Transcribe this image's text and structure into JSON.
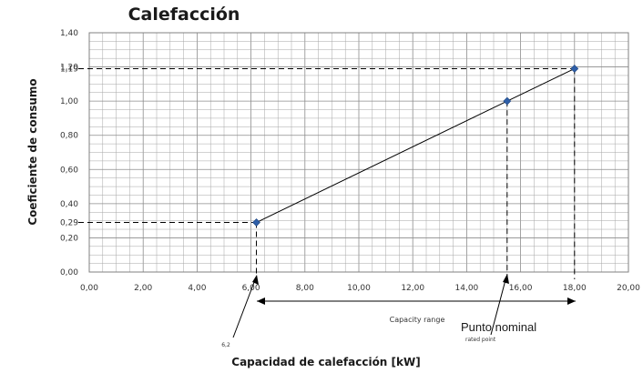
{
  "chart_data": {
    "type": "line",
    "title": "Calefacción",
    "xlabel": "Capacidad de calefacción [kW]",
    "ylabel": "Coeficiente de consumo",
    "xlim": [
      0,
      20
    ],
    "ylim": [
      0,
      1.4
    ],
    "x_ticks": [
      "0,00",
      "2,00",
      "4,00",
      "6,00",
      "8,00",
      "10,00",
      "12,00",
      "14,00",
      "16,00",
      "18,00",
      "20,00"
    ],
    "y_ticks": [
      "0,00",
      "0,20",
      "0,40",
      "0,60",
      "0,80",
      "1,00",
      "1,20",
      "1,40"
    ],
    "y_extra_ticks": [
      "0,29",
      "1,19"
    ],
    "grid": true,
    "series": [
      {
        "x": [
          6.2,
          15.5,
          18.0
        ],
        "y": [
          0.29,
          1.0,
          1.19
        ]
      }
    ],
    "annotations": {
      "min_x_label": "6,2",
      "capacity_range": "Capacity range",
      "punto_nominal": "Punto nominal",
      "rated_point": "rated point"
    },
    "colors": {
      "marker": "#2e5fa8",
      "line": "#000000",
      "grid": "#a6a6a6",
      "border": "#808080"
    }
  }
}
